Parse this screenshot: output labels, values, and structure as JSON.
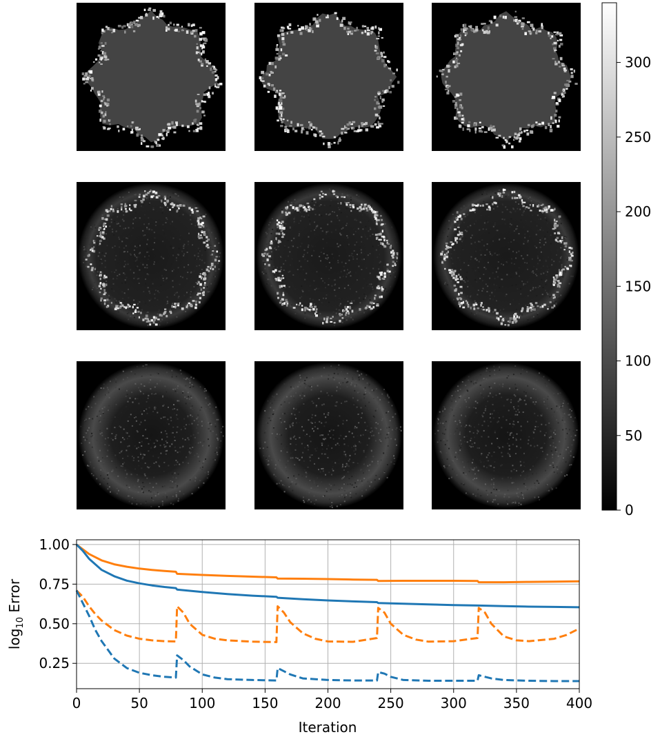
{
  "chart_data": [
    {
      "type": "heatmap",
      "panels": [
        {
          "row": 1,
          "style": "blocky"
        },
        {
          "row": 1,
          "style": "blocky"
        },
        {
          "row": 1,
          "style": "blocky"
        },
        {
          "row": 2,
          "style": "noisy"
        },
        {
          "row": 2,
          "style": "noisy"
        },
        {
          "row": 2,
          "style": "noisy"
        },
        {
          "row": 3,
          "style": "faint"
        },
        {
          "row": 3,
          "style": "faint"
        },
        {
          "row": 3,
          "style": "faint"
        }
      ],
      "colormap": "gray",
      "colorbar": {
        "range": [
          0,
          340
        ],
        "ticks": [
          0,
          50,
          100,
          150,
          200,
          250,
          300
        ],
        "tick_labels": [
          "0",
          "50",
          "100",
          "150",
          "200",
          "250",
          "300"
        ]
      }
    },
    {
      "type": "line",
      "xlabel": "Iteration",
      "ylabel_base": "log",
      "ylabel_sub": "10",
      "ylabel_rest": " Error",
      "xlim": [
        0,
        400
      ],
      "ylim": [
        0.09,
        1.03
      ],
      "xticks": [
        0,
        50,
        100,
        150,
        200,
        250,
        300,
        350,
        400
      ],
      "xtick_labels": [
        "0",
        "50",
        "100",
        "150",
        "200",
        "250",
        "300",
        "350",
        "400"
      ],
      "yticks": [
        0.25,
        0.5,
        0.75,
        1.0
      ],
      "ytick_labels": [
        "0.25",
        "0.50",
        "0.75",
        "1.00"
      ],
      "grid": true,
      "series": [
        {
          "color": "#ff7f0e",
          "dash": "solid",
          "x": [
            0,
            5,
            10,
            20,
            30,
            40,
            50,
            60,
            70,
            79,
            80,
            100,
            120,
            140,
            159,
            160,
            180,
            200,
            220,
            239,
            240,
            260,
            280,
            300,
            319,
            320,
            340,
            360,
            380,
            400
          ],
          "y": [
            1.0,
            0.97,
            0.94,
            0.9,
            0.875,
            0.86,
            0.848,
            0.84,
            0.833,
            0.828,
            0.815,
            0.808,
            0.802,
            0.797,
            0.793,
            0.785,
            0.784,
            0.782,
            0.779,
            0.777,
            0.77,
            0.771,
            0.771,
            0.771,
            0.77,
            0.762,
            0.762,
            0.764,
            0.766,
            0.768
          ]
        },
        {
          "color": "#1f77b4",
          "dash": "solid",
          "x": [
            0,
            5,
            10,
            20,
            30,
            40,
            50,
            60,
            70,
            79,
            80,
            100,
            120,
            140,
            159,
            160,
            180,
            200,
            220,
            239,
            240,
            260,
            280,
            300,
            320,
            340,
            360,
            380,
            400
          ],
          "y": [
            1.0,
            0.96,
            0.91,
            0.84,
            0.8,
            0.772,
            0.755,
            0.742,
            0.732,
            0.725,
            0.716,
            0.7,
            0.687,
            0.677,
            0.67,
            0.664,
            0.655,
            0.647,
            0.641,
            0.636,
            0.631,
            0.626,
            0.622,
            0.618,
            0.615,
            0.611,
            0.608,
            0.606,
            0.604
          ]
        },
        {
          "color": "#ff7f0e",
          "dash": "dashed",
          "x": [
            0,
            5,
            10,
            15,
            20,
            30,
            40,
            50,
            60,
            70,
            79,
            80,
            85,
            90,
            100,
            110,
            120,
            140,
            159,
            160,
            165,
            170,
            180,
            190,
            200,
            220,
            239,
            240,
            245,
            250,
            260,
            270,
            280,
            300,
            319,
            320,
            325,
            330,
            340,
            350,
            360,
            380,
            390,
            400
          ],
          "y": [
            0.71,
            0.67,
            0.61,
            0.56,
            0.52,
            0.46,
            0.425,
            0.405,
            0.395,
            0.39,
            0.388,
            0.61,
            0.57,
            0.5,
            0.43,
            0.405,
            0.395,
            0.387,
            0.384,
            0.61,
            0.57,
            0.51,
            0.44,
            0.405,
            0.388,
            0.386,
            0.41,
            0.6,
            0.57,
            0.5,
            0.43,
            0.4,
            0.387,
            0.39,
            0.41,
            0.6,
            0.57,
            0.5,
            0.42,
            0.395,
            0.39,
            0.405,
            0.43,
            0.47
          ]
        },
        {
          "color": "#1f77b4",
          "dash": "dashed",
          "x": [
            0,
            5,
            10,
            15,
            20,
            30,
            40,
            50,
            60,
            70,
            79,
            80,
            85,
            90,
            100,
            110,
            120,
            140,
            159,
            160,
            165,
            170,
            180,
            200,
            220,
            239,
            240,
            245,
            250,
            260,
            280,
            300,
            319,
            320,
            325,
            330,
            340,
            360,
            380,
            400
          ],
          "y": [
            0.71,
            0.63,
            0.55,
            0.46,
            0.39,
            0.28,
            0.22,
            0.19,
            0.175,
            0.165,
            0.16,
            0.3,
            0.27,
            0.23,
            0.18,
            0.16,
            0.15,
            0.145,
            0.142,
            0.22,
            0.2,
            0.18,
            0.155,
            0.145,
            0.142,
            0.142,
            0.195,
            0.185,
            0.165,
            0.145,
            0.14,
            0.14,
            0.14,
            0.175,
            0.165,
            0.155,
            0.145,
            0.14,
            0.138,
            0.138
          ]
        }
      ]
    }
  ]
}
